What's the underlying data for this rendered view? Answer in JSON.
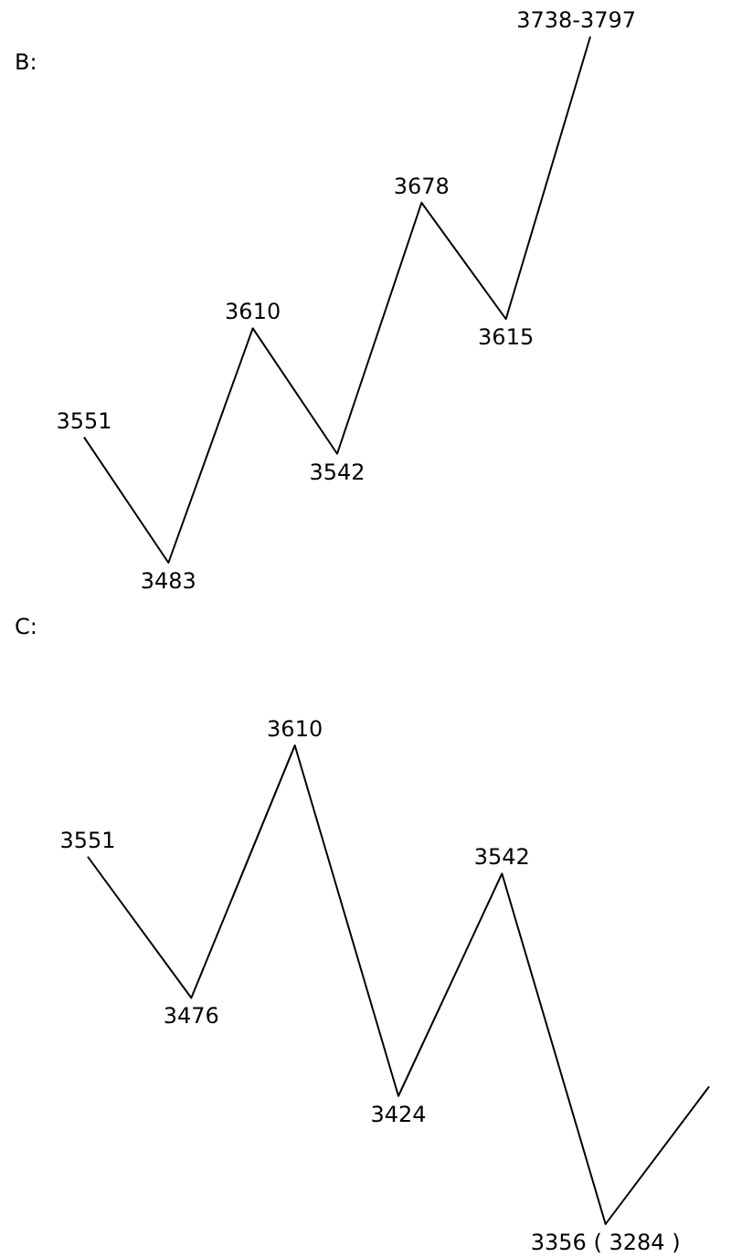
{
  "chart_data": [
    {
      "type": "line",
      "title": "B:",
      "categories": [
        null,
        null,
        null,
        null,
        null,
        null,
        null
      ],
      "series": [
        {
          "color": "#000000",
          "values": [
            3551,
            3483,
            3610,
            3542,
            3678,
            3615,
            3768
          ],
          "value_labels": [
            "3551",
            "3483",
            "3610",
            "3542",
            "3678",
            "3615",
            "3738-3797"
          ]
        }
      ],
      "marker": "none",
      "line_style": "solid"
    },
    {
      "type": "line",
      "title": "C:",
      "categories": [
        null,
        null,
        null,
        null,
        null,
        null,
        null
      ],
      "series": [
        {
          "color": "#000000",
          "values": [
            3551,
            3476,
            3610,
            3424,
            3542,
            3356,
            3429
          ],
          "value_labels": [
            "3551",
            "3476",
            "3610",
            "3424",
            "3542",
            "3356 ( 3284 )",
            null
          ]
        }
      ],
      "marker": "none",
      "line_style": "solid"
    }
  ]
}
